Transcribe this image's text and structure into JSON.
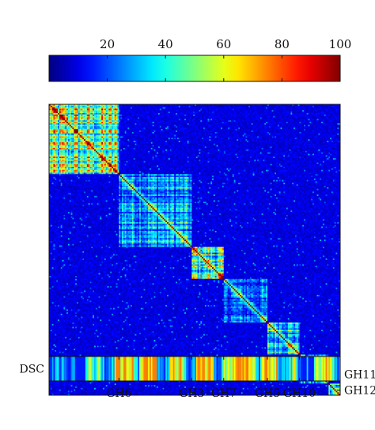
{
  "chart_data": {
    "type": "heatmap",
    "title": "",
    "xlabel": "",
    "ylabel": "",
    "colormap": "jet",
    "colorbar": {
      "min": 0,
      "max": 100,
      "ticks": [
        20,
        40,
        60,
        80,
        100
      ],
      "tick_labels": [
        "20",
        "40",
        "60",
        "80",
        "100"
      ],
      "position": "top"
    },
    "matrix": {
      "background_level": 8,
      "groups": [
        {
          "name": "GH6",
          "start": 0,
          "size": 48,
          "level": 46
        },
        {
          "name": "GH3",
          "start": 48,
          "size": 50,
          "level": 28
        },
        {
          "name": "GH7",
          "start": 98,
          "size": 22,
          "level": 40
        },
        {
          "name": "GH5",
          "start": 120,
          "size": 30,
          "level": 22
        },
        {
          "name": "GH10",
          "start": 150,
          "size": 22,
          "level": 36
        },
        {
          "name": "GH11",
          "start": 172,
          "size": 20,
          "level": 40
        },
        {
          "name": "GH12",
          "start": 192,
          "size": 8,
          "level": 38
        }
      ],
      "n": 200,
      "diagonal_level": 100
    },
    "row_labels": [
      {
        "text": "GH11",
        "index": 185
      },
      {
        "text": "GH12",
        "index": 196
      }
    ],
    "bottom_strip": {
      "label": "DSC",
      "n": 200
    },
    "bottom_labels": [
      {
        "text": "GH6",
        "index": 48
      },
      {
        "text": "GH3",
        "index": 98
      },
      {
        "text": "GH7",
        "index": 120
      },
      {
        "text": "GH5",
        "index": 150
      },
      {
        "text": "GH10",
        "index": 172
      }
    ]
  },
  "colors": {
    "axis": "#111111"
  }
}
